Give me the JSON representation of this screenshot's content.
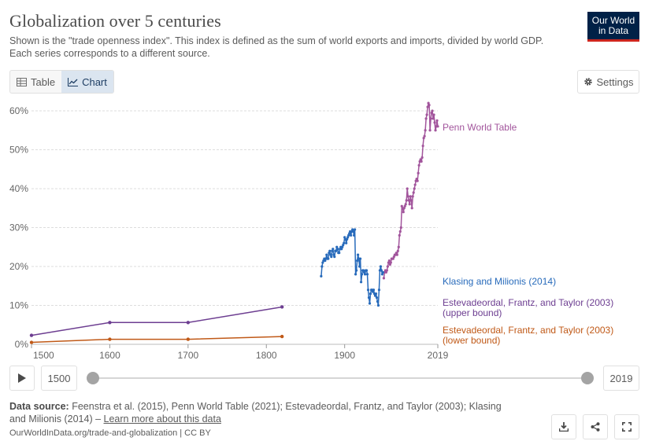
{
  "header": {
    "title": "Globalization over 5 centuries",
    "subtitle_line1": "Shown is the \"trade openness index\". This index is defined as the sum of world exports and imports, divided by world GDP.",
    "subtitle_line2": "Each series corresponds to a different source.",
    "logo_line1": "Our World",
    "logo_line2": "in Data"
  },
  "tabs": [
    {
      "label": "Table",
      "icon": "table-icon",
      "active": false
    },
    {
      "label": "Chart",
      "icon": "line-chart-icon",
      "active": true
    }
  ],
  "settings_label": "Settings",
  "chart_data": {
    "type": "line",
    "title": "Globalization over 5 centuries",
    "xlabel": "",
    "ylabel": "",
    "xlim": [
      1500,
      2019
    ],
    "ylim": [
      0,
      60
    ],
    "grid": true,
    "x_ticks": [
      1500,
      1600,
      1700,
      1800,
      1900,
      2019
    ],
    "x_tick_labels": [
      "1500",
      "1600",
      "1700",
      "1800",
      "1900",
      "2019"
    ],
    "y_ticks": [
      0,
      10,
      20,
      30,
      40,
      50,
      60
    ],
    "y_tick_labels": [
      "0%",
      "10%",
      "20%",
      "30%",
      "40%",
      "50%",
      "60%"
    ],
    "series": [
      {
        "name": "Penn World Table",
        "color": "#a2559c",
        "x": [
          1950,
          1951,
          1952,
          1953,
          1954,
          1955,
          1956,
          1957,
          1958,
          1959,
          1960,
          1961,
          1962,
          1963,
          1964,
          1965,
          1966,
          1967,
          1968,
          1969,
          1970,
          1971,
          1972,
          1973,
          1974,
          1975,
          1976,
          1977,
          1978,
          1979,
          1980,
          1981,
          1982,
          1983,
          1984,
          1985,
          1986,
          1987,
          1988,
          1989,
          1990,
          1991,
          1992,
          1993,
          1994,
          1995,
          1996,
          1997,
          1998,
          1999,
          2000,
          2001,
          2002,
          2003,
          2004,
          2005,
          2006,
          2007,
          2008,
          2009,
          2010,
          2011,
          2012,
          2013,
          2014,
          2015,
          2016,
          2017,
          2018,
          2019
        ],
        "values": [
          17,
          18.5,
          19,
          18.5,
          19,
          20,
          21,
          21.5,
          20.5,
          21,
          22,
          22,
          22,
          22.5,
          23,
          23,
          23.5,
          23,
          24,
          25,
          28,
          29,
          30,
          35.5,
          35,
          34,
          35,
          35.5,
          36,
          37,
          40,
          38,
          37,
          36,
          38,
          37,
          35,
          38,
          39,
          40,
          41,
          42,
          42.5,
          42,
          44,
          46,
          47,
          47.5,
          47,
          48,
          51,
          53,
          53.5,
          55,
          58,
          59,
          61,
          62,
          61.5,
          55,
          58,
          59.5,
          60,
          58,
          59,
          57,
          55,
          56,
          57.5,
          56
        ]
      },
      {
        "name": "Klasing and Milionis (2014)",
        "color": "#286bbb",
        "x": [
          1870,
          1871,
          1872,
          1873,
          1874,
          1875,
          1876,
          1877,
          1878,
          1879,
          1880,
          1881,
          1882,
          1883,
          1884,
          1885,
          1886,
          1887,
          1888,
          1889,
          1890,
          1891,
          1892,
          1893,
          1894,
          1895,
          1896,
          1897,
          1898,
          1899,
          1900,
          1901,
          1902,
          1903,
          1904,
          1905,
          1906,
          1907,
          1908,
          1909,
          1910,
          1911,
          1912,
          1913,
          1914,
          1915,
          1916,
          1917,
          1918,
          1919,
          1920,
          1921,
          1922,
          1923,
          1924,
          1925,
          1926,
          1927,
          1928,
          1929,
          1930,
          1931,
          1932,
          1933,
          1934,
          1935,
          1936,
          1937,
          1938,
          1939,
          1940,
          1941,
          1942,
          1943,
          1944,
          1945,
          1946,
          1947,
          1948,
          1949
        ],
        "values": [
          17.5,
          20,
          21,
          21.5,
          22,
          21.5,
          22,
          23,
          22,
          22,
          23.5,
          24,
          23,
          22.5,
          24,
          24.5,
          23,
          22.5,
          24,
          24,
          25,
          24.5,
          23.5,
          23.5,
          24.5,
          25,
          24.5,
          25,
          25.5,
          26,
          27.5,
          27,
          26,
          27,
          27.5,
          28,
          28.5,
          29,
          28,
          29,
          29.5,
          29,
          28,
          29.5,
          18,
          19,
          21.5,
          23,
          22,
          20,
          22,
          16,
          18,
          19,
          19,
          18.5,
          18,
          19,
          19,
          18,
          14,
          12,
          10.5,
          13,
          14,
          14,
          13.5,
          14,
          13,
          12.5,
          13,
          12,
          11,
          10,
          14,
          19,
          20,
          19,
          18,
          18.5
        ]
      },
      {
        "name": "Estevadeordal, Frantz, and Taylor (2003) (upper bound)",
        "color": "#6d3e91",
        "x": [
          1500,
          1600,
          1700,
          1820
        ],
        "values": [
          2.3,
          5.6,
          5.6,
          9.6
        ]
      },
      {
        "name": "Estevadeordal, Frantz, and Taylor (2003) (lower bound)",
        "color": "#c05917",
        "x": [
          1500,
          1600,
          1700,
          1820
        ],
        "values": [
          0.5,
          1.3,
          1.3,
          2
        ]
      }
    ]
  },
  "legend_labels": {
    "penn": "Penn World Table",
    "klasing": "Klasing and Milionis (2014)",
    "upper_line1": "Estevadeordal, Frantz, and Taylor (2003)",
    "upper_line2": "(upper bound)",
    "lower_line1": "Estevadeordal, Frantz, and Taylor (2003)",
    "lower_line2": "(lower bound)"
  },
  "timeline": {
    "start_year": "1500",
    "end_year": "2019"
  },
  "footer": {
    "source_label": "Data source:",
    "source_text": "Feenstra et al. (2015), Penn World Table (2021); Estevadeordal, Frantz, and Taylor (2003); Klasing and Milionis (2014) – ",
    "learn_more": "Learn more about this data",
    "url": "OurWorldInData.org/trade-and-globalization | CC BY"
  },
  "colors": {
    "penn": "#a2559c",
    "klasing": "#286bbb",
    "upper": "#6d3e91",
    "lower": "#c05917",
    "grid": "#dddddd",
    "axis_text": "#666666"
  }
}
